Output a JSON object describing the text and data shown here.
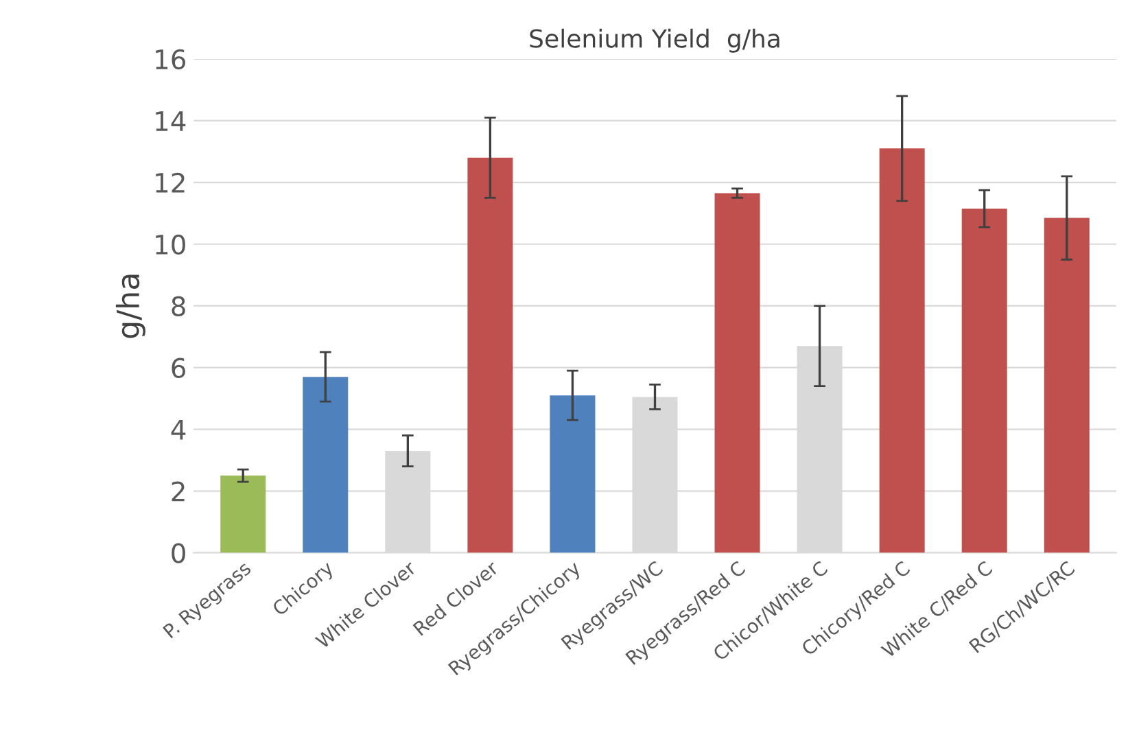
{
  "chart_data": {
    "type": "bar",
    "title": "Selenium Yield  g/ha",
    "ylabel": "g/ha",
    "categories": [
      "P. Ryegrass",
      "Chicory",
      "White Clover",
      "Red Clover",
      "Ryegrass/Chicory",
      "Ryegrass/WC",
      "Ryegrass/Red C",
      "Chicor/White C",
      "Chicory/Red C",
      "White C/Red C",
      "RG/Ch/WC/RC"
    ],
    "values": [
      2.5,
      5.7,
      3.3,
      12.8,
      5.1,
      5.05,
      11.65,
      6.7,
      13.1,
      11.15,
      10.85
    ],
    "errors": [
      0.2,
      0.8,
      0.5,
      1.3,
      0.8,
      0.4,
      0.15,
      1.3,
      1.7,
      0.6,
      1.35
    ],
    "colors": [
      "#9bbb59",
      "#4f81bd",
      "#d9d9d9",
      "#c0504d",
      "#4f81bd",
      "#d9d9d9",
      "#c0504d",
      "#d9d9d9",
      "#c0504d",
      "#c0504d",
      "#c0504d"
    ],
    "ylim": [
      0,
      16
    ],
    "yticks": [
      0,
      2,
      4,
      6,
      8,
      10,
      12,
      14,
      16
    ],
    "grid": "y"
  }
}
